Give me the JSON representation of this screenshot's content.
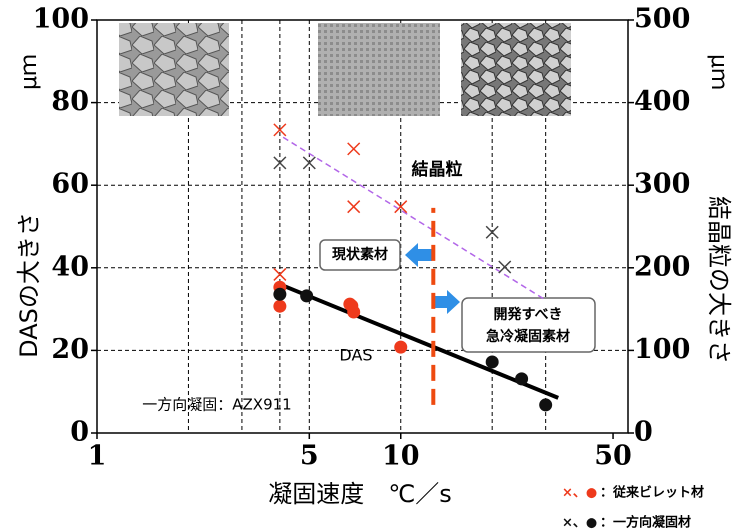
{
  "chart_data": {
    "type": "scatter",
    "x_label": "凝固速度　℃／s",
    "y_label": "DASの大きさ",
    "y_unit": "μｍ",
    "y2_label": "結晶粒の大きさ",
    "y2_unit": "μｍ",
    "xscale": "log",
    "xlim": [
      1,
      56
    ],
    "xticks": [
      1,
      5,
      10,
      50
    ],
    "xgrid": [
      2,
      3,
      4,
      5,
      10,
      20,
      30
    ],
    "ylim": [
      0,
      100
    ],
    "yticks": [
      0,
      20,
      40,
      60,
      80,
      100
    ],
    "y2lim": [
      0,
      500
    ],
    "y2ticks": [
      0,
      100,
      200,
      300,
      400,
      500
    ],
    "grid": true,
    "series": [
      {
        "marker": "circle",
        "color": "#ee3a1c",
        "x": [
          4,
          4,
          6.8,
          7,
          6.9,
          10
        ],
        "values": [
          35.3,
          30.7,
          31.2,
          29.3,
          30.8,
          20.8
        ]
      },
      {
        "marker": "circle",
        "color": "#111111",
        "x": [
          4,
          4.9,
          20,
          25,
          30
        ],
        "values": [
          33.6,
          33.2,
          17.2,
          13.1,
          6.8
        ]
      },
      {
        "marker": "cross",
        "axis": "y2",
        "color": "#ee3a1c",
        "x": [
          4,
          4,
          7,
          7,
          10
        ],
        "values": [
          367,
          192,
          344,
          274,
          274
        ]
      },
      {
        "marker": "cross",
        "axis": "y2",
        "color": "#444444",
        "x": [
          4,
          5,
          20,
          22
        ],
        "values": [
          327,
          327,
          243,
          201
        ]
      }
    ],
    "lines": [
      {
        "color": "#000000",
        "width": 4,
        "x": [
          4,
          33
        ],
        "values": [
          36,
          8.5
        ]
      },
      {
        "color": "#b266e8",
        "width": 1.5,
        "dash": true,
        "axis": "y2",
        "x": [
          4.1,
          30
        ],
        "values": [
          358,
          161
        ]
      }
    ],
    "threshold": {
      "color": "#ee4a10",
      "x": 12.8,
      "values": [
        6.8,
        54.5
      ]
    },
    "annotations": {
      "grain": "結晶粒",
      "das": "DAS",
      "alloy": "一方向凝固：AZX911",
      "current": "現状素材",
      "develop": [
        "開発すべき",
        "急冷凝固素材"
      ]
    },
    "legend": [
      {
        "symbol": "×、●",
        "name": "：従来ビレット材",
        "color": "#ee3a1c"
      },
      {
        "symbol": "×、●",
        "name": "：一方向凝固材",
        "color": "#111111"
      }
    ]
  }
}
